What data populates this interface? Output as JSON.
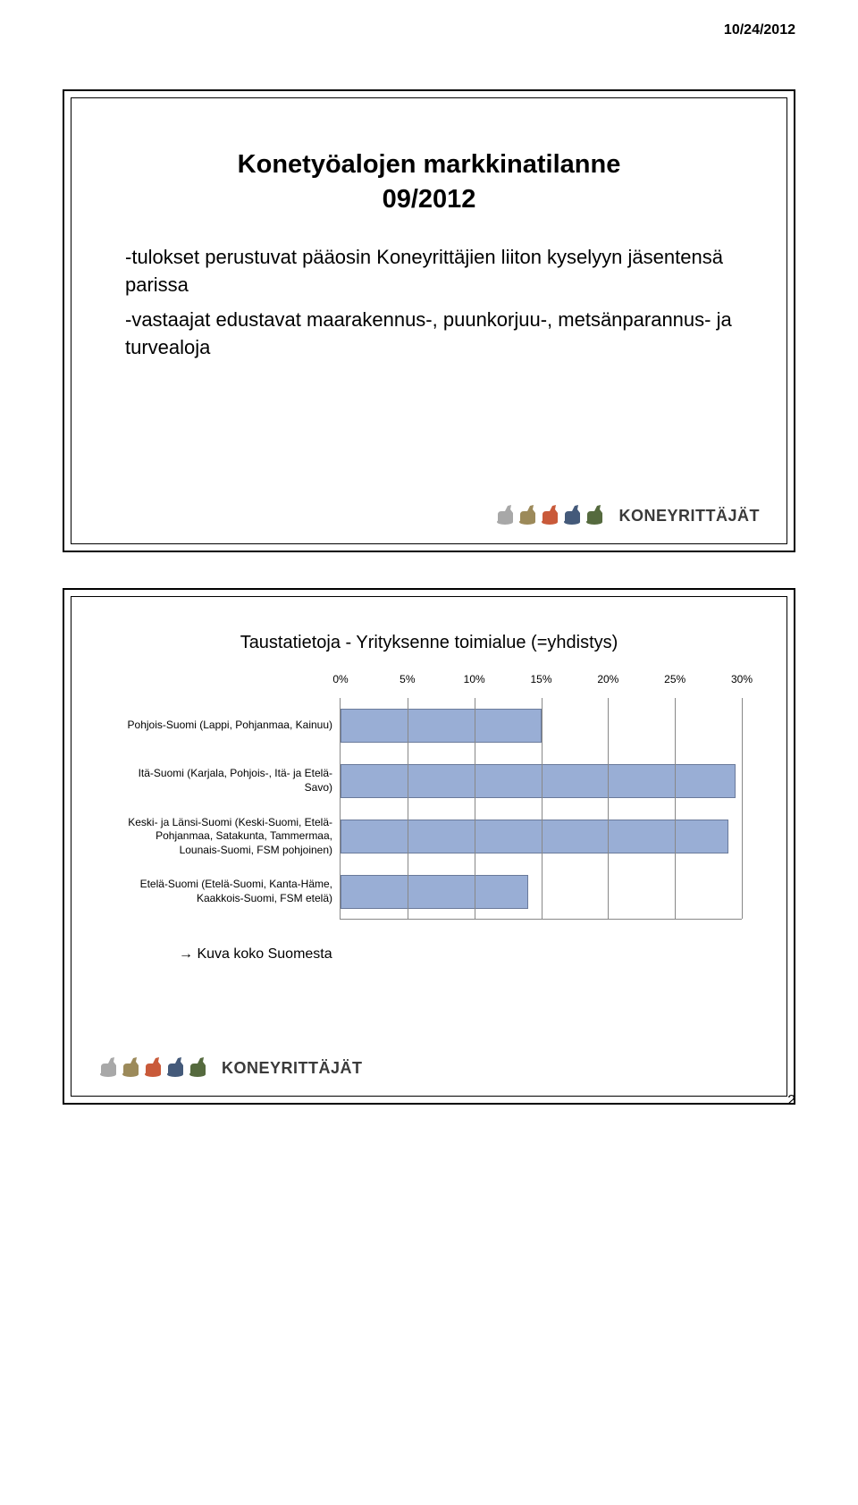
{
  "date_header": "10/24/2012",
  "page_number": "2",
  "slide1": {
    "title_line1": "Konetyöalojen markkinatilanne",
    "title_line2": "09/2012",
    "bullet1": "-tulokset perustuvat pääosin Koneyrittäjien liiton kyselyyn jäsentensä parissa",
    "bullet2": "-vastaajat edustavat maarakennus-, puunkorjuu-, metsänparannus- ja turvealoja"
  },
  "logo": {
    "text": "KONEYRITTÄJÄT",
    "colors": [
      "#a8a8a8",
      "#9c8a5a",
      "#c95a3a",
      "#445a7a",
      "#556a3e"
    ]
  },
  "slide2": {
    "title": "Taustatietoja - Yrityksenne toimialue (=yhdistys)",
    "footer": "→ Kuva koko Suomesta"
  },
  "chart": {
    "type": "bar",
    "x_ticks": [
      "0%",
      "5%",
      "10%",
      "15%",
      "20%",
      "25%",
      "30%"
    ],
    "x_max": 30,
    "bar_color": "#99aed5",
    "bar_border": "#6a7a9a",
    "grid_color": "#888888",
    "label_fontsize": 12,
    "categories": [
      {
        "label": "Pohjois-Suomi (Lappi, Pohjanmaa, Kainuu)",
        "value": 15
      },
      {
        "label": "Itä-Suomi (Karjala, Pohjois-, Itä- ja Etelä-Savo)",
        "value": 29.5
      },
      {
        "label": "Keski- ja Länsi-Suomi (Keski-Suomi, Etelä-Pohjanmaa, Satakunta, Tammermaa, Lounais-Suomi, FSM pohjoinen)",
        "value": 29
      },
      {
        "label": "Etelä-Suomi (Etelä-Suomi, Kanta-Häme, Kaakkois-Suomi, FSM etelä)",
        "value": 14
      }
    ]
  }
}
